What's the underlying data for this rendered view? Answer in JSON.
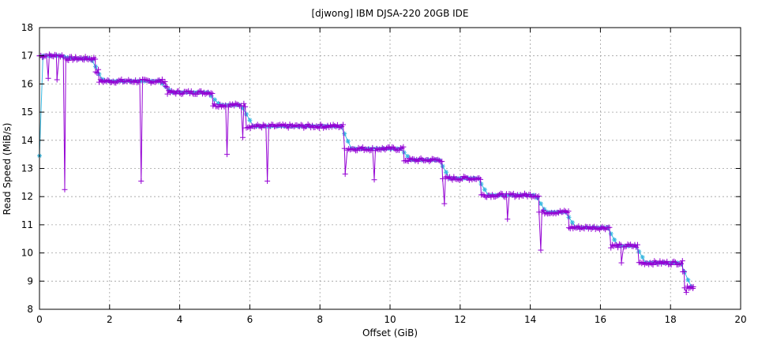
{
  "chart_data": {
    "type": "line",
    "title": "[djwong] IBM DJSA-220 20GB IDE",
    "xlabel": "Offset (GiB)",
    "ylabel": "Read Speed (MiB/s)",
    "xlim": [
      0,
      20
    ],
    "ylim": [
      8,
      18
    ],
    "xticks": [
      "0",
      "2",
      "4",
      "6",
      "8",
      "10",
      "12",
      "14",
      "16",
      "18",
      "20"
    ],
    "yticks": [
      "8",
      "9",
      "10",
      "11",
      "12",
      "13",
      "14",
      "15",
      "16",
      "17",
      "18"
    ],
    "grid": true,
    "legend": "none",
    "colors": {
      "raw": "#9400d3",
      "smooth": "#36b7e0"
    },
    "segments": [
      {
        "x0": 0.0,
        "x1": 0.75,
        "y": 17.0
      },
      {
        "x0": 0.75,
        "x1": 1.6,
        "y": 16.9
      },
      {
        "x0": 1.6,
        "x1": 1.7,
        "y": 16.45
      },
      {
        "x0": 1.7,
        "x1": 3.6,
        "y": 16.1
      },
      {
        "x0": 3.6,
        "x1": 3.65,
        "y": 15.9
      },
      {
        "x0": 3.65,
        "x1": 4.95,
        "y": 15.7
      },
      {
        "x0": 4.95,
        "x1": 5.9,
        "y": 15.25
      },
      {
        "x0": 5.9,
        "x1": 8.7,
        "y": 14.5
      },
      {
        "x0": 8.7,
        "x1": 10.4,
        "y": 13.7
      },
      {
        "x0": 10.4,
        "x1": 11.5,
        "y": 13.3
      },
      {
        "x0": 11.5,
        "x1": 12.6,
        "y": 12.65
      },
      {
        "x0": 12.6,
        "x1": 14.25,
        "y": 12.05
      },
      {
        "x0": 14.25,
        "x1": 15.1,
        "y": 11.45
      },
      {
        "x0": 15.1,
        "x1": 16.3,
        "y": 10.9
      },
      {
        "x0": 16.3,
        "x1": 17.1,
        "y": 10.25
      },
      {
        "x0": 17.1,
        "x1": 18.35,
        "y": 9.65
      },
      {
        "x0": 18.35,
        "x1": 18.4,
        "y": 9.4
      },
      {
        "x0": 18.4,
        "x1": 18.65,
        "y": 8.8
      }
    ],
    "dips": [
      {
        "x": 0.25,
        "y": 16.2
      },
      {
        "x": 0.5,
        "y": 16.15
      },
      {
        "x": 0.72,
        "y": 12.25
      },
      {
        "x": 2.9,
        "y": 12.55
      },
      {
        "x": 5.35,
        "y": 13.5
      },
      {
        "x": 5.8,
        "y": 14.1
      },
      {
        "x": 6.5,
        "y": 12.55
      },
      {
        "x": 8.72,
        "y": 12.8
      },
      {
        "x": 9.55,
        "y": 12.6
      },
      {
        "x": 11.55,
        "y": 11.75
      },
      {
        "x": 13.35,
        "y": 11.2
      },
      {
        "x": 14.3,
        "y": 10.1
      },
      {
        "x": 16.6,
        "y": 9.65
      },
      {
        "x": 18.45,
        "y": 8.6
      }
    ],
    "start_point": {
      "x": 0.0,
      "y": 13.45
    }
  }
}
